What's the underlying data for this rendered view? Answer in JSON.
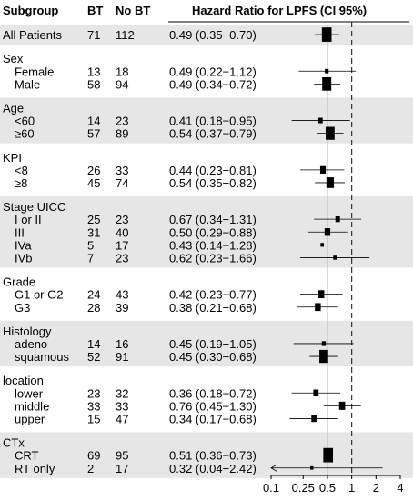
{
  "headers": {
    "subgroup": "Subgroup",
    "bt": "BT",
    "nobt": "No BT",
    "hr": "Hazard Ratio for LPFS (CI 95%)"
  },
  "colors": {
    "band": "#e6e6e6",
    "marker": "#000000",
    "ref_line": "#b3b3b3",
    "null_line": "#333333"
  },
  "chart_data": {
    "type": "forest",
    "title": "",
    "xlabel": "",
    "x_scale": "log",
    "xlim": [
      0.1,
      4
    ],
    "x_ticks": [
      0.1,
      0.25,
      0.5,
      1,
      2,
      4
    ],
    "x_tick_labels": [
      "0.1",
      "0.25",
      "0.5",
      "1",
      "2",
      "4"
    ],
    "reference_line": 0.5,
    "null_line": 1,
    "null_line_style": "dashed",
    "groups": [
      {
        "name": "",
        "rows": [
          {
            "label": "All Patients",
            "bt": "71",
            "nobt": "112",
            "hr": 0.49,
            "lo": 0.35,
            "hi": 0.7,
            "text": "0.49 (0.35−0.70)",
            "weight": 0.85
          }
        ]
      },
      {
        "name": "Sex",
        "rows": [
          {
            "label": "Female",
            "bt": "13",
            "nobt": "18",
            "hr": 0.49,
            "lo": 0.22,
            "hi": 1.12,
            "text": "0.49 (0.22−1.12)",
            "weight": 0.12
          },
          {
            "label": "Male",
            "bt": "58",
            "nobt": "94",
            "hr": 0.49,
            "lo": 0.34,
            "hi": 0.72,
            "text": "0.49 (0.34−0.72)",
            "weight": 0.78
          }
        ]
      },
      {
        "name": "Age",
        "rows": [
          {
            "label": "<60",
            "bt": "14",
            "nobt": "23",
            "hr": 0.41,
            "lo": 0.18,
            "hi": 0.95,
            "text": "0.41 (0.18−0.95)",
            "weight": 0.2
          },
          {
            "label": "≥60",
            "bt": "57",
            "nobt": "89",
            "hr": 0.54,
            "lo": 0.37,
            "hi": 0.79,
            "text": "0.54 (0.37−0.79)",
            "weight": 0.75
          }
        ]
      },
      {
        "name": "KPI",
        "rows": [
          {
            "label": "<8",
            "bt": "26",
            "nobt": "33",
            "hr": 0.44,
            "lo": 0.23,
            "hi": 0.81,
            "text": "0.44 (0.23−0.81)",
            "weight": 0.35
          },
          {
            "label": "≥8",
            "bt": "45",
            "nobt": "74",
            "hr": 0.54,
            "lo": 0.35,
            "hi": 0.82,
            "text": "0.54 (0.35−0.82)",
            "weight": 0.58
          }
        ]
      },
      {
        "name": "Stage UICC",
        "rows": [
          {
            "label": "I or II",
            "bt": "25",
            "nobt": "23",
            "hr": 0.67,
            "lo": 0.34,
            "hi": 1.31,
            "text": "0.67 (0.34−1.31)",
            "weight": 0.22
          },
          {
            "label": "III",
            "bt": "31",
            "nobt": "40",
            "hr": 0.5,
            "lo": 0.29,
            "hi": 0.88,
            "text": "0.50 (0.29−0.88)",
            "weight": 0.36
          },
          {
            "label": "IVa",
            "bt": "5",
            "nobt": "17",
            "hr": 0.43,
            "lo": 0.14,
            "hi": 1.28,
            "text": "0.43 (0.14−1.28)",
            "weight": 0.08
          },
          {
            "label": "IVb",
            "bt": "7",
            "nobt": "23",
            "hr": 0.62,
            "lo": 0.23,
            "hi": 1.66,
            "text": "0.62 (0.23−1.66)",
            "weight": 0.1
          }
        ]
      },
      {
        "name": "Grade",
        "rows": [
          {
            "label": "G1 or G2",
            "bt": "24",
            "nobt": "43",
            "hr": 0.42,
            "lo": 0.23,
            "hi": 0.77,
            "text": "0.42 (0.23−0.77)",
            "weight": 0.38
          },
          {
            "label": "G3",
            "bt": "28",
            "nobt": "39",
            "hr": 0.38,
            "lo": 0.21,
            "hi": 0.68,
            "text": "0.38 (0.21−0.68)",
            "weight": 0.38
          }
        ]
      },
      {
        "name": "Histology",
        "rows": [
          {
            "label": "adeno",
            "bt": "14",
            "nobt": "16",
            "hr": 0.45,
            "lo": 0.19,
            "hi": 1.05,
            "text": "0.45 (0.19−1.05)",
            "weight": 0.15
          },
          {
            "label": "squamous",
            "bt": "52",
            "nobt": "91",
            "hr": 0.45,
            "lo": 0.3,
            "hi": 0.68,
            "text": "0.45 (0.30−0.68)",
            "weight": 0.75
          }
        ]
      },
      {
        "name": "location",
        "rows": [
          {
            "label": "lower",
            "bt": "23",
            "nobt": "32",
            "hr": 0.36,
            "lo": 0.18,
            "hi": 0.72,
            "text": "0.36 (0.18−0.72)",
            "weight": 0.3
          },
          {
            "label": "middle",
            "bt": "33",
            "nobt": "33",
            "hr": 0.76,
            "lo": 0.45,
            "hi": 1.3,
            "text": "0.76 (0.45−1.30)",
            "weight": 0.4
          },
          {
            "label": "upper",
            "bt": "15",
            "nobt": "47",
            "hr": 0.34,
            "lo": 0.17,
            "hi": 0.68,
            "text": "0.34 (0.17−0.68)",
            "weight": 0.3
          }
        ]
      },
      {
        "name": "CTx",
        "rows": [
          {
            "label": "CRT",
            "bt": "69",
            "nobt": "95",
            "hr": 0.51,
            "lo": 0.36,
            "hi": 0.73,
            "text": "0.51 (0.36−0.73)",
            "weight": 0.85
          },
          {
            "label": "RT only",
            "bt": "2",
            "nobt": "17",
            "hr": 0.32,
            "lo": 0.04,
            "hi": 2.42,
            "text": "0.32 (0.04−2.42)",
            "weight": 0.05
          }
        ]
      }
    ]
  }
}
